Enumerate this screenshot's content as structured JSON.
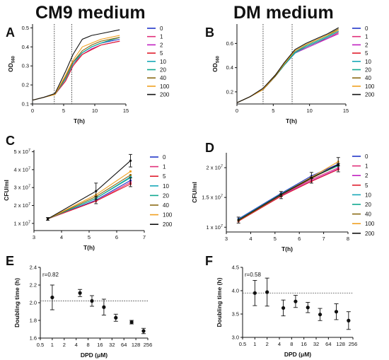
{
  "headings": {
    "left": "CM9 medium",
    "right": "DM medium"
  },
  "palette": {
    "0": "#2236c8",
    "1": "#e0307a",
    "2": "#c020c0",
    "5": "#e01e2e",
    "10": "#18a8b8",
    "20": "#10a890",
    "40": "#8a6a14",
    "100": "#f0a020",
    "200": "#111111"
  },
  "chart_data": [
    {
      "panel_letter": "A",
      "type": "line",
      "xlabel": "T(h)",
      "ylabel": "OD560",
      "xlim": [
        0,
        15
      ],
      "xticks": [
        0,
        5,
        10,
        15
      ],
      "ylim": [
        0.1,
        0.52
      ],
      "yticks": [
        0.1,
        0.2,
        0.3,
        0.4,
        0.5
      ],
      "ytick_labels": [
        "0.1",
        "0.2",
        "0.3",
        "0.4",
        "0.5"
      ],
      "vlines": [
        3.5,
        6.3
      ],
      "x": [
        0,
        1.8,
        3.6,
        5.3,
        6.5,
        8,
        9.5,
        11,
        14
      ],
      "series": [
        {
          "name": "0",
          "values": [
            0.12,
            0.135,
            0.15,
            0.24,
            0.32,
            0.37,
            0.4,
            0.42,
            0.44
          ]
        },
        {
          "name": "1",
          "values": [
            0.12,
            0.135,
            0.15,
            0.23,
            0.31,
            0.36,
            0.39,
            0.41,
            0.43
          ]
        },
        {
          "name": "2",
          "values": [
            0.12,
            0.135,
            0.15,
            0.22,
            0.3,
            0.36,
            0.39,
            0.41,
            0.43
          ]
        },
        {
          "name": "5",
          "values": [
            0.12,
            0.135,
            0.15,
            0.22,
            0.3,
            0.36,
            0.385,
            0.41,
            0.43
          ]
        },
        {
          "name": "10",
          "values": [
            0.12,
            0.135,
            0.15,
            0.23,
            0.31,
            0.37,
            0.4,
            0.42,
            0.45
          ]
        },
        {
          "name": "20",
          "values": [
            0.12,
            0.135,
            0.15,
            0.24,
            0.32,
            0.37,
            0.4,
            0.42,
            0.45
          ]
        },
        {
          "name": "40",
          "values": [
            0.12,
            0.135,
            0.15,
            0.24,
            0.32,
            0.38,
            0.41,
            0.43,
            0.45
          ]
        },
        {
          "name": "100",
          "values": [
            0.12,
            0.135,
            0.15,
            0.25,
            0.33,
            0.4,
            0.42,
            0.44,
            0.46
          ]
        },
        {
          "name": "200",
          "values": [
            0.12,
            0.135,
            0.155,
            0.27,
            0.36,
            0.44,
            0.46,
            0.47,
            0.49
          ]
        }
      ]
    },
    {
      "panel_letter": "B",
      "type": "line",
      "xlabel": "T(h)",
      "ylabel": "OD560",
      "xlim": [
        0,
        15
      ],
      "xticks": [
        0,
        5,
        10,
        15
      ],
      "ylim": [
        0.1,
        0.76
      ],
      "yticks": [
        0.2,
        0.4,
        0.6
      ],
      "ytick_labels": [
        "0.2",
        "0.4",
        "0.6"
      ],
      "vlines": [
        3.6,
        7.6
      ],
      "x": [
        0,
        1.8,
        3.6,
        5.3,
        6.5,
        8,
        9.5,
        11,
        12.5,
        14
      ],
      "series": [
        {
          "name": "0",
          "values": [
            0.11,
            0.16,
            0.22,
            0.33,
            0.42,
            0.52,
            0.57,
            0.61,
            0.65,
            0.7
          ]
        },
        {
          "name": "1",
          "values": [
            0.11,
            0.16,
            0.22,
            0.33,
            0.42,
            0.52,
            0.57,
            0.61,
            0.64,
            0.69
          ]
        },
        {
          "name": "2",
          "values": [
            0.11,
            0.16,
            0.22,
            0.33,
            0.42,
            0.52,
            0.56,
            0.6,
            0.64,
            0.68
          ]
        },
        {
          "name": "5",
          "values": [
            0.11,
            0.16,
            0.22,
            0.33,
            0.42,
            0.53,
            0.57,
            0.61,
            0.65,
            0.7
          ]
        },
        {
          "name": "10",
          "values": [
            0.11,
            0.16,
            0.22,
            0.33,
            0.42,
            0.52,
            0.57,
            0.61,
            0.65,
            0.7
          ]
        },
        {
          "name": "20",
          "values": [
            0.11,
            0.16,
            0.22,
            0.33,
            0.42,
            0.53,
            0.58,
            0.62,
            0.66,
            0.71
          ]
        },
        {
          "name": "40",
          "values": [
            0.11,
            0.16,
            0.22,
            0.33,
            0.43,
            0.54,
            0.59,
            0.63,
            0.67,
            0.72
          ]
        },
        {
          "name": "100",
          "values": [
            0.11,
            0.16,
            0.22,
            0.34,
            0.43,
            0.54,
            0.59,
            0.63,
            0.67,
            0.71
          ]
        },
        {
          "name": "200",
          "values": [
            0.11,
            0.16,
            0.23,
            0.34,
            0.44,
            0.55,
            0.6,
            0.64,
            0.68,
            0.73
          ]
        }
      ]
    },
    {
      "panel_letter": "C",
      "type": "line",
      "xlabel": "T(h)",
      "ylabel": "CFU/ml",
      "xlim": [
        3,
        7
      ],
      "xticks": [
        3,
        4,
        5,
        6,
        7
      ],
      "ylim": [
        0.6,
        5.1
      ],
      "yticks": [
        1,
        2,
        3,
        4,
        5
      ],
      "ytick_labels": [
        "1 x 10",
        "2 x 10",
        "3 x 10",
        "4 x 10",
        "5 x 10"
      ],
      "ytick_exp": "7",
      "x": [
        3.5,
        5.25,
        6.5
      ],
      "series": [
        {
          "name": "0",
          "values": [
            1.25,
            2.3,
            3.4
          ]
        },
        {
          "name": "1",
          "values": [
            1.25,
            2.25,
            3.3
          ]
        },
        {
          "name": "5",
          "values": [
            1.25,
            2.25,
            3.2
          ]
        },
        {
          "name": "10",
          "values": [
            1.25,
            2.4,
            3.6
          ]
        },
        {
          "name": "20",
          "values": [
            1.25,
            2.4,
            3.55
          ]
        },
        {
          "name": "40",
          "values": [
            1.25,
            2.5,
            3.7
          ]
        },
        {
          "name": "100",
          "values": [
            1.25,
            2.6,
            3.9
          ]
        },
        {
          "name": "200",
          "values": [
            1.25,
            2.8,
            4.5
          ]
        }
      ],
      "errors": [
        {
          "x": 3.5,
          "value": 1.25,
          "err": 0.08
        },
        {
          "x": 5.25,
          "value": 2.8,
          "err": 0.45
        },
        {
          "x": 5.25,
          "value": 2.3,
          "err": 0.2
        },
        {
          "x": 6.5,
          "value": 4.5,
          "err": 0.35
        },
        {
          "x": 6.5,
          "value": 3.3,
          "err": 0.25
        }
      ]
    },
    {
      "panel_letter": "D",
      "type": "line",
      "xlabel": "T(h)",
      "ylabel": "CFU/ml",
      "xlim": [
        3,
        8
      ],
      "xticks": [
        3,
        4,
        5,
        6,
        7,
        8
      ],
      "ylim": [
        0.92,
        2.25
      ],
      "yticks": [
        1,
        1.5,
        2
      ],
      "ytick_labels": [
        "1 x 10",
        "1.5 x 10",
        "2 x 10"
      ],
      "ytick_exp": "7",
      "x": [
        3.5,
        5.25,
        6.5,
        7.6
      ],
      "series": [
        {
          "name": "0",
          "values": [
            1.14,
            1.57,
            1.86,
            2.06
          ]
        },
        {
          "name": "1",
          "values": [
            1.12,
            1.54,
            1.8,
            2.0
          ]
        },
        {
          "name": "2",
          "values": [
            1.11,
            1.53,
            1.78,
            1.98
          ]
        },
        {
          "name": "5",
          "values": [
            1.1,
            1.52,
            1.77,
            1.97
          ]
        },
        {
          "name": "10",
          "values": [
            1.13,
            1.56,
            1.84,
            2.04
          ]
        },
        {
          "name": "20",
          "values": [
            1.12,
            1.55,
            1.83,
            2.03
          ]
        },
        {
          "name": "40",
          "values": [
            1.11,
            1.54,
            1.82,
            2.05
          ]
        },
        {
          "name": "100",
          "values": [
            1.12,
            1.55,
            1.84,
            2.1
          ]
        },
        {
          "name": "200",
          "values": [
            1.12,
            1.55,
            1.83,
            2.05
          ]
        }
      ],
      "errors": [
        {
          "x": 3.5,
          "value": 1.12,
          "err": 0.05
        },
        {
          "x": 5.25,
          "value": 1.56,
          "err": 0.04
        },
        {
          "x": 5.25,
          "value": 1.52,
          "err": 0.04
        },
        {
          "x": 6.5,
          "value": 1.88,
          "err": 0.04
        },
        {
          "x": 6.5,
          "value": 1.78,
          "err": 0.04
        },
        {
          "x": 7.6,
          "value": 2.1,
          "err": 0.07
        },
        {
          "x": 7.6,
          "value": 2.0,
          "err": 0.07
        }
      ]
    },
    {
      "panel_letter": "E",
      "type": "scatter",
      "xlabel": "DPD (μM)",
      "ylabel": "Doubling time (h)",
      "xscale": "log2",
      "xlim": [
        0.5,
        256
      ],
      "xticks": [
        0.5,
        1,
        2,
        4,
        8,
        16,
        32,
        64,
        128,
        256
      ],
      "xtick_labels": [
        "0.5",
        "1",
        "2",
        "4",
        "8",
        "16",
        "32",
        "64",
        "128",
        "256"
      ],
      "ylim": [
        1.6,
        2.4
      ],
      "yticks": [
        1.6,
        1.8,
        2.0,
        2.2,
        2.4
      ],
      "ytick_labels": [
        "1.6",
        "1.8",
        "2.0",
        "2.2",
        "2.4"
      ],
      "hline": 2.02,
      "annotation": "r=0.82",
      "points": [
        {
          "x": 1,
          "y": 2.06,
          "err": 0.14
        },
        {
          "x": 5,
          "y": 2.11,
          "err": 0.04
        },
        {
          "x": 10,
          "y": 2.02,
          "err": 0.06
        },
        {
          "x": 20,
          "y": 1.95,
          "err": 0.09
        },
        {
          "x": 40,
          "y": 1.83,
          "err": 0.04
        },
        {
          "x": 100,
          "y": 1.78,
          "err": 0.02
        },
        {
          "x": 200,
          "y": 1.68,
          "err": 0.03
        }
      ]
    },
    {
      "panel_letter": "F",
      "type": "scatter",
      "xlabel": "DPD (μM)",
      "ylabel": "Doubling time (h)",
      "xscale": "log2",
      "xlim": [
        0.5,
        256
      ],
      "xticks": [
        0.5,
        1,
        2,
        4,
        8,
        16,
        32,
        64,
        128,
        256
      ],
      "xtick_labels": [
        "0.5",
        "1",
        "2",
        "4",
        "8",
        "16",
        "32",
        "64",
        "128",
        "256"
      ],
      "ylim": [
        3.0,
        4.5
      ],
      "yticks": [
        3.0,
        3.5,
        4.0,
        4.5
      ],
      "ytick_labels": [
        "3.0",
        "3.5",
        "4.0",
        "4.5"
      ],
      "hline": 3.95,
      "annotation": "r=0.58",
      "points": [
        {
          "x": 1,
          "y": 3.95,
          "err": 0.27
        },
        {
          "x": 2,
          "y": 3.97,
          "err": 0.3
        },
        {
          "x": 5,
          "y": 3.63,
          "err": 0.17
        },
        {
          "x": 10,
          "y": 3.77,
          "err": 0.13
        },
        {
          "x": 20,
          "y": 3.64,
          "err": 0.11
        },
        {
          "x": 40,
          "y": 3.49,
          "err": 0.13
        },
        {
          "x": 100,
          "y": 3.55,
          "err": 0.17
        },
        {
          "x": 200,
          "y": 3.36,
          "err": 0.19
        }
      ]
    }
  ]
}
